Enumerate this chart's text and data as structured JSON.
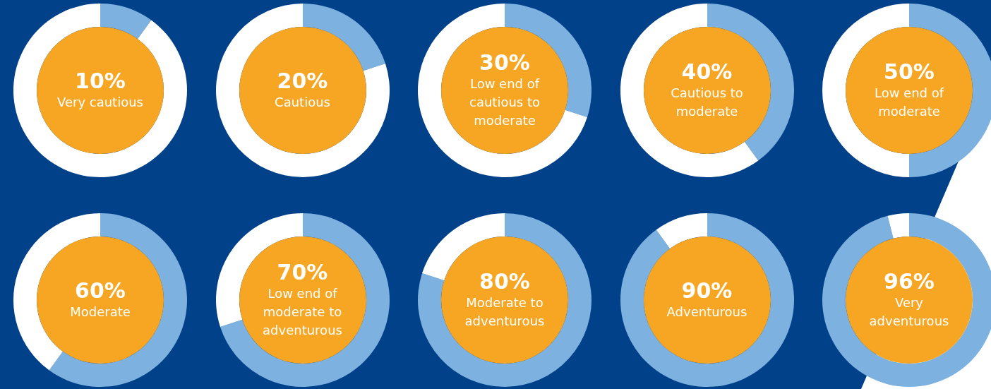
{
  "chart_data": [
    {
      "type": "donut",
      "categories": [
        "Very cautious",
        null
      ],
      "values": [
        10,
        90
      ],
      "colors": [
        "#7db1e0",
        "#ffffff"
      ],
      "value_labels": [
        "10%",
        null
      ]
    },
    {
      "type": "donut",
      "categories": [
        "Cautious",
        null
      ],
      "values": [
        20,
        80
      ],
      "colors": [
        "#7db1e0",
        "#ffffff"
      ],
      "value_labels": [
        "20%",
        null
      ]
    },
    {
      "type": "donut",
      "categories": [
        "Low end of cautious to moderate",
        null
      ],
      "values": [
        30,
        70
      ],
      "colors": [
        "#7db1e0",
        "#ffffff"
      ],
      "value_labels": [
        "30%",
        null
      ]
    },
    {
      "type": "donut",
      "categories": [
        "Cautious to moderate",
        null
      ],
      "values": [
        40,
        60
      ],
      "colors": [
        "#7db1e0",
        "#ffffff"
      ],
      "value_labels": [
        "40%",
        null
      ]
    },
    {
      "type": "donut",
      "categories": [
        "Low end of moderate",
        null
      ],
      "values": [
        50,
        50
      ],
      "colors": [
        "#7db1e0",
        "#ffffff"
      ],
      "value_labels": [
        "50%",
        null
      ]
    },
    {
      "type": "donut",
      "categories": [
        "Moderate",
        null
      ],
      "values": [
        60,
        40
      ],
      "colors": [
        "#7db1e0",
        "#ffffff"
      ],
      "value_labels": [
        "60%",
        null
      ]
    },
    {
      "type": "donut",
      "categories": [
        "Low end of moderate to adventurous",
        null
      ],
      "values": [
        70,
        30
      ],
      "colors": [
        "#7db1e0",
        "#ffffff"
      ],
      "value_labels": [
        "70%",
        null
      ]
    },
    {
      "type": "donut",
      "categories": [
        "Moderate to adventurous",
        null
      ],
      "values": [
        80,
        20
      ],
      "colors": [
        "#7db1e0",
        "#ffffff"
      ],
      "value_labels": [
        "80%",
        null
      ]
    },
    {
      "type": "donut",
      "categories": [
        "Adventurous",
        null
      ],
      "values": [
        90,
        10
      ],
      "colors": [
        "#7db1e0",
        "#ffffff"
      ],
      "value_labels": [
        "90%",
        null
      ]
    },
    {
      "type": "donut",
      "categories": [
        "Very adventurous",
        null
      ],
      "values": [
        96,
        4
      ],
      "colors": [
        "#7db1e0",
        "#ffffff"
      ],
      "value_labels": [
        "96%",
        null
      ]
    }
  ]
}
